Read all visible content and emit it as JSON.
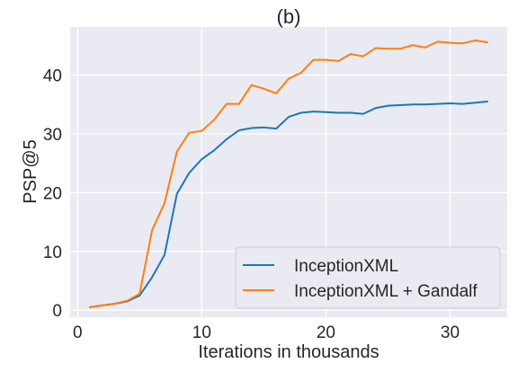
{
  "chart_data": {
    "type": "line",
    "title": "(b)",
    "xlabel": "Iterations in thousands",
    "ylabel": "PSP@5",
    "xlim": [
      -0.6,
      34.6
    ],
    "ylim": [
      -1.2,
      48.2
    ],
    "xticks": [
      0,
      10,
      20,
      30
    ],
    "yticks": [
      0,
      10,
      20,
      30,
      40
    ],
    "grid": true,
    "legend_position": "lower-right",
    "x": [
      1,
      2,
      3,
      4,
      5,
      6,
      7,
      8,
      9,
      10,
      11,
      12,
      13,
      14,
      15,
      16,
      17,
      18,
      19,
      20,
      21,
      22,
      23,
      24,
      25,
      26,
      27,
      28,
      29,
      30,
      31,
      32,
      33
    ],
    "series": [
      {
        "name": "InceptionXML",
        "color": "#1f77b4",
        "values": [
          0.5,
          0.8,
          1.1,
          1.5,
          2.5,
          5.6,
          9.4,
          19.8,
          23.4,
          25.7,
          27.2,
          29.1,
          30.6,
          31.0,
          31.1,
          30.9,
          32.9,
          33.6,
          33.8,
          33.7,
          33.6,
          33.6,
          33.4,
          34.4,
          34.8,
          34.9,
          35.0,
          35.0,
          35.1,
          35.2,
          35.1,
          35.3,
          35.5
        ]
      },
      {
        "name": "InceptionXML + Gandalf",
        "color": "#ff7f0e",
        "values": [
          0.5,
          0.8,
          1.1,
          1.6,
          2.8,
          13.6,
          18.2,
          27.0,
          30.2,
          30.5,
          32.4,
          35.1,
          35.1,
          38.3,
          37.7,
          36.9,
          39.4,
          40.4,
          42.6,
          42.6,
          42.4,
          43.6,
          43.2,
          44.6,
          44.5,
          44.5,
          45.1,
          44.7,
          45.7,
          45.5,
          45.4,
          45.9,
          45.6
        ]
      }
    ]
  }
}
